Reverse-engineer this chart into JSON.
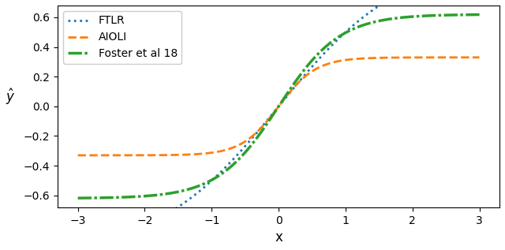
{
  "xlim": [
    -3.3,
    3.3
  ],
  "ylim": [
    -0.68,
    0.68
  ],
  "xticks": [
    -3,
    -2,
    -1,
    0,
    1,
    2,
    3
  ],
  "yticks": [
    -0.6,
    -0.4,
    -0.2,
    0.0,
    0.2,
    0.4,
    0.6
  ],
  "xlabel": "x",
  "ylabel": "$\\hat{y}$",
  "legend_entries": [
    "FTLR",
    "AIOLI",
    "Foster et al 18"
  ],
  "ftlr_color": "#1f77b4",
  "aioli_color": "#ff7f0e",
  "foster_color": "#2ca02c",
  "ftlr_linewidth": 2.0,
  "aioli_linewidth": 2.0,
  "foster_linewidth": 2.5,
  "background_color": "#ffffff"
}
